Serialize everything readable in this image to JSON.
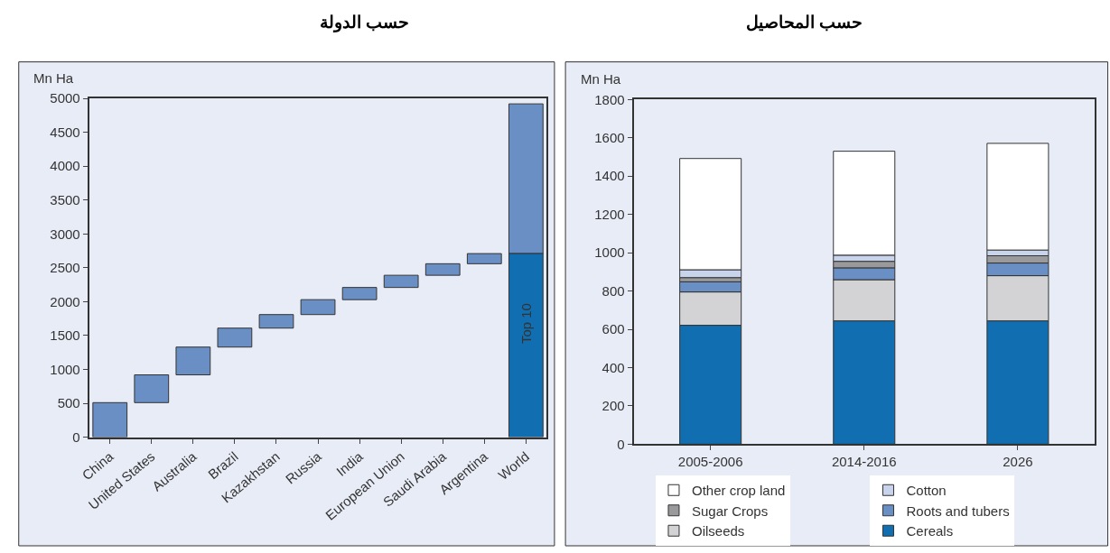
{
  "chart_data": [
    {
      "type": "bar",
      "title": "حسب الدولة",
      "ylabel": "Mn Ha",
      "categories": [
        "China",
        "United States",
        "Australia",
        "Brazil",
        "Kazakhstan",
        "Russia",
        "India",
        "European Union",
        "Saudi Arabia",
        "Argentina",
        "World"
      ],
      "series": [
        {
          "color": "#6a8fc4",
          "base": [
            0,
            510,
            920,
            1330,
            1610,
            1810,
            2030,
            2210,
            2390,
            2560,
            2710
          ],
          "values": [
            510,
            410,
            410,
            280,
            200,
            220,
            180,
            180,
            170,
            150,
            2210
          ]
        },
        {
          "color": "#116eb0",
          "base": [
            null,
            null,
            null,
            null,
            null,
            null,
            null,
            null,
            null,
            null,
            0
          ],
          "values": [
            null,
            null,
            null,
            null,
            null,
            null,
            null,
            null,
            null,
            null,
            2710
          ]
        }
      ],
      "ylim": [
        0,
        5000
      ],
      "yticks": [
        0,
        500,
        1000,
        1500,
        2000,
        2500,
        3000,
        3500,
        4000,
        4500,
        5000
      ],
      "annotations": [
        "Top 10"
      ]
    },
    {
      "type": "bar",
      "title": "حسب المحاصيل",
      "ylabel": "Mn Ha",
      "stacked": true,
      "categories": [
        "2005-2006",
        "2014-2016",
        "2026"
      ],
      "series": [
        {
          "name": "Cereals",
          "color": "#116eb0",
          "values": [
            621,
            644,
            644
          ]
        },
        {
          "name": "Oilseeds",
          "color": "#d3d3d5",
          "values": [
            174,
            215,
            236
          ]
        },
        {
          "name": "Roots and tubers",
          "color": "#6a8fc4",
          "values": [
            53,
            62,
            66
          ]
        },
        {
          "name": "Sugar Crops",
          "color": "#9a9a9c",
          "values": [
            22,
            34,
            38
          ]
        },
        {
          "name": "Cotton",
          "color": "#c8d4ec",
          "values": [
            41,
            32,
            30
          ]
        },
        {
          "name": "Other crop land",
          "color": "#ffffff",
          "values": [
            581,
            543,
            557
          ]
        }
      ],
      "ylim": [
        0,
        1800
      ],
      "yticks": [
        0,
        200,
        400,
        600,
        800,
        1000,
        1200,
        1400,
        1600,
        1800
      ],
      "legend": "bottom"
    }
  ]
}
